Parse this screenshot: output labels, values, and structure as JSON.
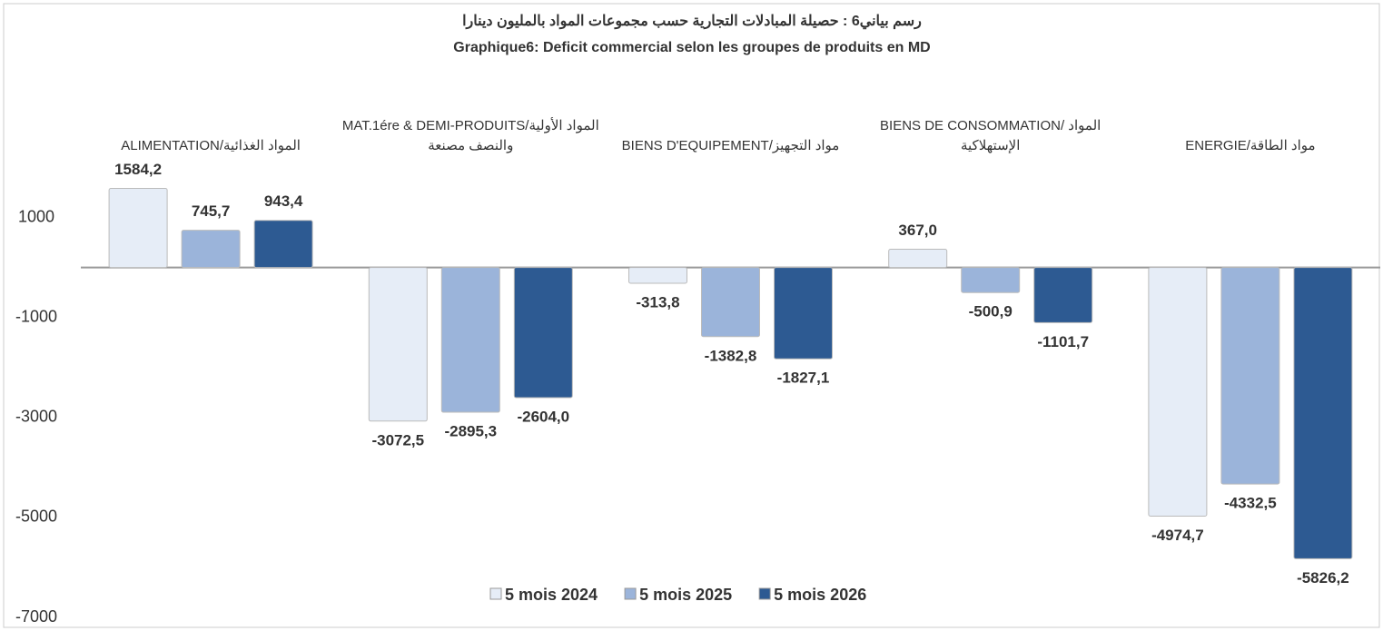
{
  "chart_data": {
    "type": "bar",
    "title": "رسم بياني6 : حصيلة المبادلات التجارية حسب مجموعات المواد بالمليون دينارا",
    "subtitle": "Graphique6: Deficit commercial selon les groupes de produits en MD",
    "categories": [
      "ALIMENTATION/المواد الغذائية",
      "MAT.1ére & DEMI-PRODUITS/المواد الأولية والنصف مصنعة",
      "BIENS D'EQUIPEMENT/مواد التجهيز",
      "BIENS DE CONSOMMATION/ المواد الإستهلاكية",
      "ENERGIE/مواد الطاقة"
    ],
    "series": [
      {
        "name": "5 mois 2024",
        "color": "#e6edf7",
        "values": [
          1584.2,
          -3072.5,
          -313.8,
          367.0,
          -4974.7
        ],
        "value_labels": [
          "1584,2",
          "-3072,5",
          "-313,8",
          "367,0",
          "-4974,7"
        ]
      },
      {
        "name": "5 mois 2025",
        "color": "#9bb4da",
        "values": [
          745.7,
          -2895.3,
          -1382.8,
          -500.9,
          -4332.5
        ],
        "value_labels": [
          "745,7",
          "-2895,3",
          "-1382,8",
          "-500,9",
          "-4332,5"
        ]
      },
      {
        "name": "5 mois 2026",
        "color": "#2d5a92",
        "values": [
          943.4,
          -2604.0,
          -1827.1,
          -1101.7,
          -5826.2
        ],
        "value_labels": [
          "943,4",
          "-2604,0",
          "-1827,1",
          "-1101,7",
          "-5826,2"
        ]
      }
    ],
    "ylim": [
      -7000,
      3500
    ],
    "yticks": [
      1000,
      -1000,
      -3000,
      -5000,
      -7000
    ],
    "grid": false
  }
}
